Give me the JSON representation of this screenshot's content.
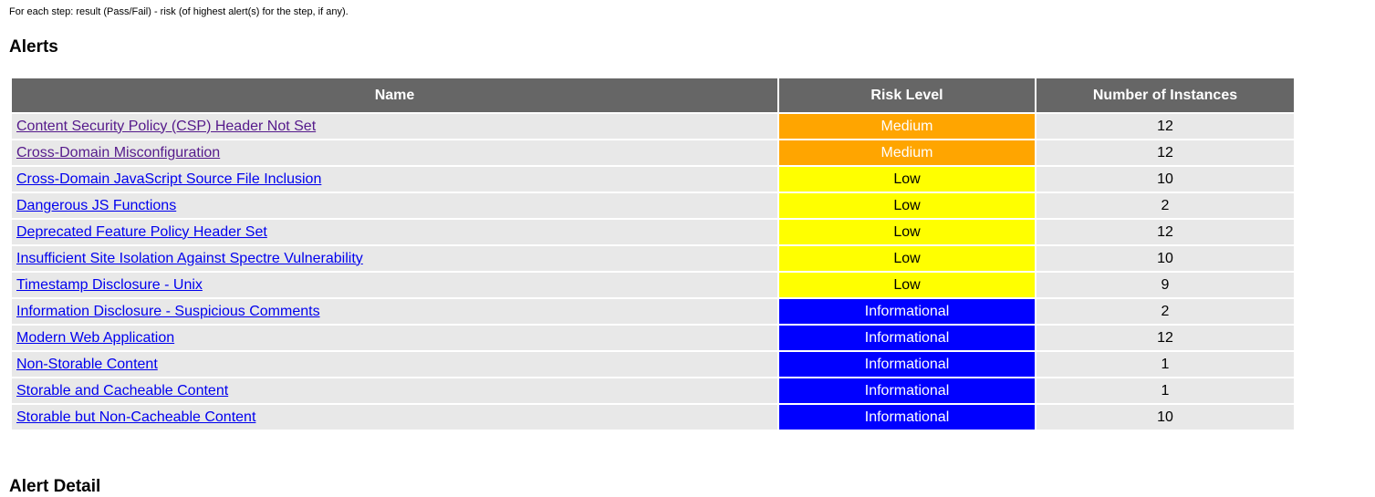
{
  "intro": "For each step: result (Pass/Fail) - risk (of highest alert(s) for the step, if any).",
  "alerts_heading": "Alerts",
  "detail_heading": "Alert Detail",
  "table": {
    "headers": {
      "name": "Name",
      "risk": "Risk Level",
      "instances": "Number of Instances"
    },
    "colors": {
      "header_bg": "#666666",
      "row_bg": "#e8e8e8",
      "medium": "#ffa500",
      "low": "#ffff00",
      "informational": "#0000ff",
      "link": "#0000ee",
      "visited_link": "#551a8b"
    },
    "rows": [
      {
        "name": "Content Security Policy (CSP) Header Not Set",
        "risk": "Medium",
        "instances": "12",
        "visited": true
      },
      {
        "name": "Cross-Domain Misconfiguration",
        "risk": "Medium",
        "instances": "12",
        "visited": true
      },
      {
        "name": "Cross-Domain JavaScript Source File Inclusion",
        "risk": "Low",
        "instances": "10",
        "visited": false
      },
      {
        "name": "Dangerous JS Functions",
        "risk": "Low",
        "instances": "2",
        "visited": false
      },
      {
        "name": "Deprecated Feature Policy Header Set",
        "risk": "Low",
        "instances": "12",
        "visited": false
      },
      {
        "name": "Insufficient Site Isolation Against Spectre Vulnerability",
        "risk": "Low",
        "instances": "10",
        "visited": false
      },
      {
        "name": "Timestamp Disclosure - Unix",
        "risk": "Low",
        "instances": "9",
        "visited": false
      },
      {
        "name": "Information Disclosure - Suspicious Comments",
        "risk": "Informational",
        "instances": "2",
        "visited": false
      },
      {
        "name": "Modern Web Application",
        "risk": "Informational",
        "instances": "12",
        "visited": false
      },
      {
        "name": "Non-Storable Content",
        "risk": "Informational",
        "instances": "1",
        "visited": false
      },
      {
        "name": "Storable and Cacheable Content",
        "risk": "Informational",
        "instances": "1",
        "visited": false
      },
      {
        "name": "Storable but Non-Cacheable Content",
        "risk": "Informational",
        "instances": "10",
        "visited": false
      }
    ]
  }
}
